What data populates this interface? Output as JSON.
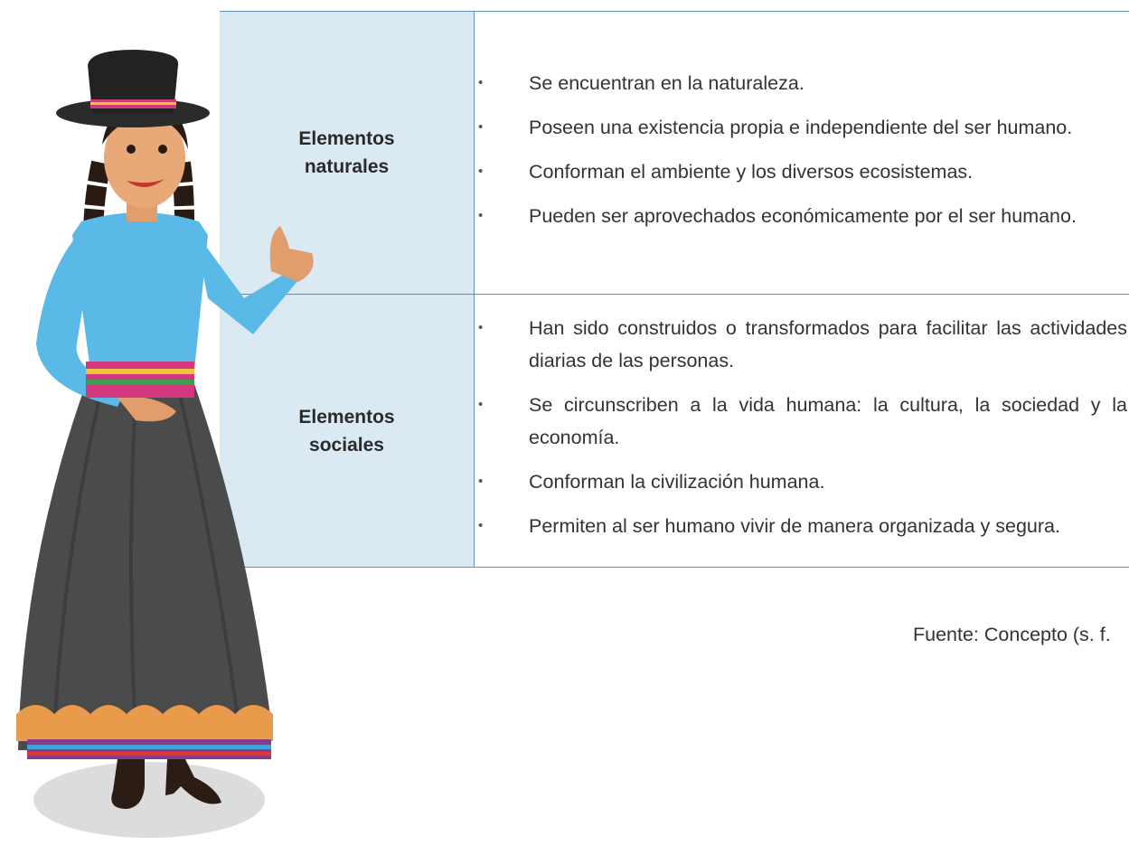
{
  "table": {
    "rows": [
      {
        "header": "Elementos naturales",
        "items": [
          "Se encuentran en la naturaleza.",
          "Poseen una existencia propia e independiente del ser humano.",
          "Conforman el ambiente y los diversos ecosistemas.",
          "Pueden ser aprovechados económicamente por el ser humano."
        ]
      },
      {
        "header": "Elementos sociales",
        "items": [
          "Han sido construidos o transformados para facilitar las actividades diarias de las personas.",
          "Se circunscriben a la vida humana: la cultura, la sociedad y la economía.",
          "Conforman la civilización humana.",
          "Permiten al ser humano vivir de manera organizada y segura."
        ]
      }
    ]
  },
  "source": "Fuente: Concepto (s. f."
}
